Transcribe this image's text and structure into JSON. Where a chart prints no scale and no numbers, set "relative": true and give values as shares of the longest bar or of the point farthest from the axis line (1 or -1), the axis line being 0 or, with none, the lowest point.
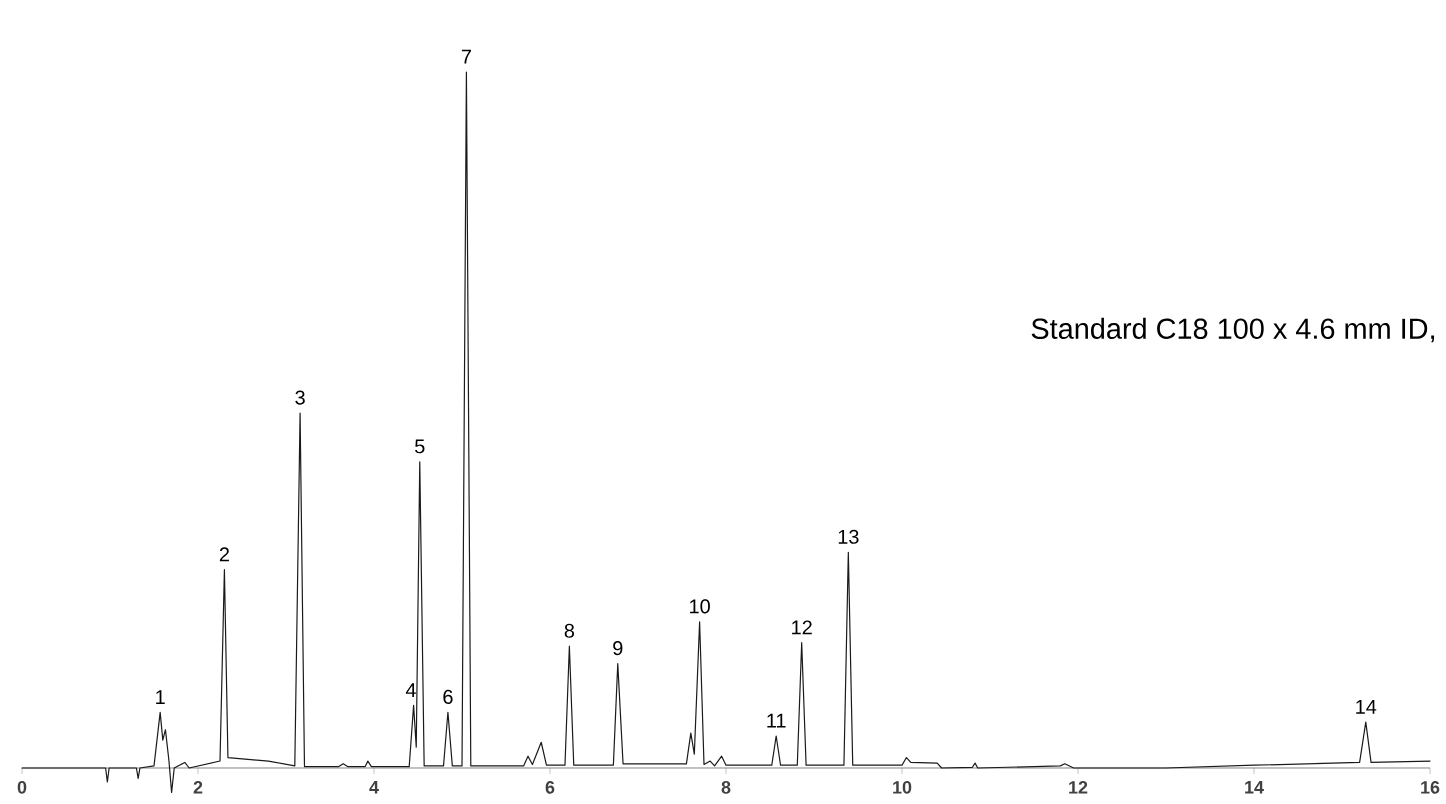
{
  "chart_data": {
    "type": "line",
    "relative": true,
    "xlim": [
      0,
      16
    ],
    "xticks": [
      0,
      2,
      4,
      6,
      8,
      10,
      12,
      14,
      16
    ],
    "marker": "none",
    "line_style": "solid",
    "tick_labels": "x",
    "x": [
      0,
      0.95,
      0.97,
      0.99,
      1.3,
      1.32,
      1.34,
      1.5,
      1.57,
      1.6,
      1.63,
      1.67,
      1.7,
      1.73,
      1.85,
      1.9,
      2.25,
      2.3,
      2.34,
      2.6,
      2.8,
      3.1,
      3.16,
      3.21,
      3.6,
      3.65,
      3.7,
      3.9,
      3.93,
      3.97,
      4.4,
      4.45,
      4.48,
      4.52,
      4.57,
      4.79,
      4.84,
      4.89,
      5.0,
      5.05,
      5.1,
      5.7,
      5.75,
      5.8,
      5.9,
      5.96,
      6.17,
      6.22,
      6.27,
      6.72,
      6.77,
      6.83,
      7.55,
      7.6,
      7.64,
      7.7,
      7.75,
      7.82,
      7.87,
      7.95,
      8.0,
      8.52,
      8.57,
      8.62,
      8.81,
      8.86,
      8.91,
      9.34,
      9.39,
      9.44,
      10.0,
      10.05,
      10.1,
      10.4,
      10.45,
      10.8,
      10.83,
      10.86,
      11.8,
      11.85,
      11.95,
      13,
      14,
      15.2,
      15.27,
      15.33,
      16
    ],
    "series": [
      {
        "color": "#1a1a1a",
        "values": [
          0,
          0,
          -0.02,
          0,
          0,
          -0.015,
          0,
          0.003,
          0.08,
          0.04,
          0.055,
          0.01,
          -0.035,
          0,
          0.008,
          0,
          0.01,
          0.285,
          0.015,
          0.012,
          0.01,
          0.003,
          0.51,
          0.002,
          0.002,
          0.006,
          0.002,
          0.002,
          0.01,
          0.002,
          0.002,
          0.09,
          0.03,
          0.44,
          0.003,
          0.003,
          0.08,
          0.003,
          0.003,
          1,
          0.003,
          0.003,
          0.017,
          0.005,
          0.037,
          0.004,
          0.004,
          0.175,
          0.004,
          0.004,
          0.15,
          0.006,
          0.006,
          0.05,
          0.02,
          0.21,
          0.005,
          0.01,
          0.003,
          0.017,
          0.004,
          0.004,
          0.046,
          0.004,
          0.004,
          0.18,
          0.004,
          0.004,
          0.31,
          0.004,
          0.004,
          0.015,
          0.008,
          0.007,
          0,
          0.001,
          0.007,
          0,
          0.003,
          0.006,
          0,
          0,
          0.004,
          0.008,
          0.066,
          0.008,
          0.01
        ]
      }
    ],
    "annotations": [
      {
        "text": "1",
        "x": 1.57,
        "y": 0.08
      },
      {
        "text": "2",
        "x": 2.3,
        "y": 0.285
      },
      {
        "text": "3",
        "x": 3.16,
        "y": 0.51
      },
      {
        "text": "4",
        "x": 4.42,
        "y": 0.09
      },
      {
        "text": "5",
        "x": 4.52,
        "y": 0.44
      },
      {
        "text": "6",
        "x": 4.84,
        "y": 0.08
      },
      {
        "text": "7",
        "x": 5.05,
        "y": 1
      },
      {
        "text": "8",
        "x": 6.22,
        "y": 0.175
      },
      {
        "text": "9",
        "x": 6.77,
        "y": 0.15
      },
      {
        "text": "10",
        "x": 7.7,
        "y": 0.21
      },
      {
        "text": "11",
        "x": 8.57,
        "y": 0.046
      },
      {
        "text": "12",
        "x": 8.86,
        "y": 0.18
      },
      {
        "text": "13",
        "x": 9.39,
        "y": 0.31
      },
      {
        "text": "14",
        "x": 15.27,
        "y": 0.066
      },
      "Standard C18 100 x 4.6 mm ID,"
    ]
  }
}
